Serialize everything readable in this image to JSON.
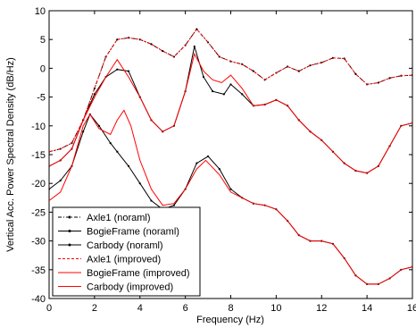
{
  "chart_data": {
    "type": "line",
    "xlabel": "Frequency (Hz)",
    "ylabel": "Vertical Acc. Power Spectral Density (dB/Hz)",
    "xlim": [
      0,
      16
    ],
    "ylim": [
      -40,
      10
    ],
    "xticks": [
      0,
      2,
      4,
      6,
      8,
      10,
      12,
      14,
      16
    ],
    "yticks": [
      -40,
      -35,
      -30,
      -25,
      -20,
      -15,
      -10,
      -5,
      0,
      5,
      10
    ],
    "grid": false,
    "legend_position": "bottom-left",
    "series": [
      {
        "name": "Axle1 (noraml)",
        "color": "#000000",
        "style": "dashdot-dot",
        "points": [
          [
            0,
            -14.5
          ],
          [
            0.5,
            -14
          ],
          [
            1,
            -13
          ],
          [
            1.5,
            -9
          ],
          [
            2,
            -3.5
          ],
          [
            2.5,
            2
          ],
          [
            3,
            5
          ],
          [
            3.5,
            5.3
          ],
          [
            4,
            5
          ],
          [
            4.5,
            4.2
          ],
          [
            5,
            3
          ],
          [
            5.5,
            2
          ],
          [
            6,
            4
          ],
          [
            6.5,
            6.8
          ],
          [
            7,
            4.5
          ],
          [
            7.5,
            2
          ],
          [
            8,
            1.2
          ],
          [
            8.5,
            0.7
          ],
          [
            9,
            -0.5
          ],
          [
            9.5,
            -2
          ],
          [
            10,
            -0.8
          ],
          [
            10.5,
            0.3
          ],
          [
            11,
            -0.5
          ],
          [
            11.5,
            0.5
          ],
          [
            12,
            1
          ],
          [
            12.5,
            1.8
          ],
          [
            13,
            1.7
          ],
          [
            13.5,
            -1
          ],
          [
            14,
            -2.8
          ],
          [
            14.5,
            -2.5
          ],
          [
            15,
            -1.7
          ],
          [
            15.5,
            -1.3
          ],
          [
            16,
            -1.2
          ]
        ]
      },
      {
        "name": "BogieFrame (noraml)",
        "color": "#000000",
        "style": "solid-dot",
        "points": [
          [
            0,
            -17
          ],
          [
            0.5,
            -16
          ],
          [
            1,
            -14
          ],
          [
            1.5,
            -9
          ],
          [
            2,
            -4.5
          ],
          [
            2.5,
            -1.5
          ],
          [
            3,
            -0.2
          ],
          [
            3.5,
            -0.5
          ],
          [
            4,
            -5
          ],
          [
            4.5,
            -9
          ],
          [
            5,
            -11
          ],
          [
            5.5,
            -10
          ],
          [
            6,
            -4
          ],
          [
            6.4,
            3.8
          ],
          [
            6.8,
            -1.5
          ],
          [
            7.2,
            -4
          ],
          [
            7.7,
            -4.5
          ],
          [
            8,
            -2.8
          ],
          [
            8.5,
            -4.5
          ],
          [
            9,
            -6.5
          ],
          [
            9.5,
            -6.3
          ],
          [
            10,
            -5.5
          ],
          [
            10.5,
            -6.5
          ],
          [
            11,
            -9
          ],
          [
            11.5,
            -11
          ],
          [
            12,
            -12.5
          ],
          [
            12.5,
            -14.5
          ],
          [
            13,
            -16.5
          ],
          [
            13.5,
            -17.8
          ],
          [
            14,
            -18.2
          ],
          [
            14.5,
            -17
          ],
          [
            15,
            -13.5
          ],
          [
            15.5,
            -10
          ],
          [
            16,
            -9.5
          ]
        ]
      },
      {
        "name": "Carbody (noraml)",
        "color": "#000000",
        "style": "solid-dot",
        "points": [
          [
            0,
            -21
          ],
          [
            0.5,
            -19.5
          ],
          [
            1,
            -17
          ],
          [
            1.5,
            -11
          ],
          [
            1.8,
            -8
          ],
          [
            2.2,
            -10
          ],
          [
            2.7,
            -13
          ],
          [
            3,
            -14.5
          ],
          [
            3.5,
            -17
          ],
          [
            4,
            -20
          ],
          [
            4.5,
            -23
          ],
          [
            5,
            -24.5
          ],
          [
            5.5,
            -23.8
          ],
          [
            6,
            -21
          ],
          [
            6.5,
            -16.5
          ],
          [
            7,
            -15.3
          ],
          [
            7.5,
            -17.5
          ],
          [
            8,
            -21
          ],
          [
            8.5,
            -22.5
          ],
          [
            9,
            -23.5
          ],
          [
            9.5,
            -23.8
          ],
          [
            10,
            -24.5
          ],
          [
            10.5,
            -26.5
          ],
          [
            11,
            -29
          ],
          [
            11.5,
            -30
          ],
          [
            12,
            -30
          ],
          [
            12.5,
            -30.5
          ],
          [
            13,
            -33
          ],
          [
            13.5,
            -36
          ],
          [
            14,
            -37.5
          ],
          [
            14.5,
            -37.5
          ],
          [
            15,
            -36.5
          ],
          [
            15.5,
            -35
          ],
          [
            16,
            -34.5
          ]
        ]
      },
      {
        "name": "Axle1 (improved)",
        "color": "#ff0000",
        "style": "dashed",
        "points": [
          [
            0,
            -14.5
          ],
          [
            0.5,
            -14
          ],
          [
            1,
            -13
          ],
          [
            1.5,
            -9
          ],
          [
            2,
            -3.5
          ],
          [
            2.5,
            2
          ],
          [
            3,
            5
          ],
          [
            3.5,
            5.3
          ],
          [
            4,
            5
          ],
          [
            4.5,
            4.2
          ],
          [
            5,
            3
          ],
          [
            5.5,
            2
          ],
          [
            6,
            4
          ],
          [
            6.5,
            6.8
          ],
          [
            7,
            4.5
          ],
          [
            7.5,
            2
          ],
          [
            8,
            1.2
          ],
          [
            8.5,
            0.7
          ],
          [
            9,
            -0.5
          ],
          [
            9.5,
            -2
          ],
          [
            10,
            -0.8
          ],
          [
            10.5,
            0.3
          ],
          [
            11,
            -0.5
          ],
          [
            11.5,
            0.5
          ],
          [
            12,
            1
          ],
          [
            12.5,
            1.8
          ],
          [
            13,
            1.7
          ],
          [
            13.5,
            -1
          ],
          [
            14,
            -2.8
          ],
          [
            14.5,
            -2.5
          ],
          [
            15,
            -1.7
          ],
          [
            15.5,
            -1.3
          ],
          [
            16,
            -1.2
          ]
        ]
      },
      {
        "name": "BogieFrame (improved)",
        "color": "#ff0000",
        "style": "solid",
        "points": [
          [
            0,
            -17
          ],
          [
            0.5,
            -16
          ],
          [
            1,
            -14
          ],
          [
            1.5,
            -9
          ],
          [
            2,
            -5
          ],
          [
            2.5,
            -1.5
          ],
          [
            3,
            1.5
          ],
          [
            3.5,
            -1.5
          ],
          [
            4,
            -5
          ],
          [
            4.5,
            -9
          ],
          [
            5,
            -11
          ],
          [
            5.5,
            -10
          ],
          [
            6,
            -4
          ],
          [
            6.4,
            2.5
          ],
          [
            6.8,
            -0.5
          ],
          [
            7.2,
            -2
          ],
          [
            7.6,
            -2.5
          ],
          [
            8,
            -1.2
          ],
          [
            8.5,
            -3.5
          ],
          [
            9,
            -6.5
          ],
          [
            9.5,
            -6.3
          ],
          [
            10,
            -5.5
          ],
          [
            10.5,
            -6.5
          ],
          [
            11,
            -9
          ],
          [
            11.5,
            -11
          ],
          [
            12,
            -12.5
          ],
          [
            12.5,
            -14.5
          ],
          [
            13,
            -16.5
          ],
          [
            13.5,
            -17.8
          ],
          [
            14,
            -18.2
          ],
          [
            14.5,
            -17
          ],
          [
            15,
            -13.5
          ],
          [
            15.5,
            -10
          ],
          [
            16,
            -9.5
          ]
        ]
      },
      {
        "name": "Carbody (improved)",
        "color": "#ff0000",
        "style": "solid",
        "points": [
          [
            0,
            -23
          ],
          [
            0.5,
            -21.5
          ],
          [
            1,
            -17
          ],
          [
            1.5,
            -10
          ],
          [
            1.8,
            -8
          ],
          [
            2.2,
            -10.5
          ],
          [
            2.7,
            -11.5
          ],
          [
            3,
            -9
          ],
          [
            3.3,
            -7.3
          ],
          [
            3.6,
            -10
          ],
          [
            4,
            -16
          ],
          [
            4.5,
            -21
          ],
          [
            5,
            -23.8
          ],
          [
            5.5,
            -23.5
          ],
          [
            6,
            -21
          ],
          [
            6.5,
            -17.5
          ],
          [
            6.9,
            -16
          ],
          [
            7.5,
            -18.5
          ],
          [
            8,
            -21.5
          ],
          [
            8.5,
            -22.5
          ],
          [
            9,
            -23.5
          ],
          [
            9.5,
            -23.8
          ],
          [
            10,
            -24.5
          ],
          [
            10.5,
            -26.5
          ],
          [
            11,
            -29
          ],
          [
            11.5,
            -30
          ],
          [
            12,
            -30
          ],
          [
            12.5,
            -30.5
          ],
          [
            13,
            -33
          ],
          [
            13.5,
            -36
          ],
          [
            14,
            -37.5
          ],
          [
            14.5,
            -37.5
          ],
          [
            15,
            -36.5
          ],
          [
            15.5,
            -35
          ],
          [
            16,
            -34.5
          ]
        ]
      }
    ]
  }
}
